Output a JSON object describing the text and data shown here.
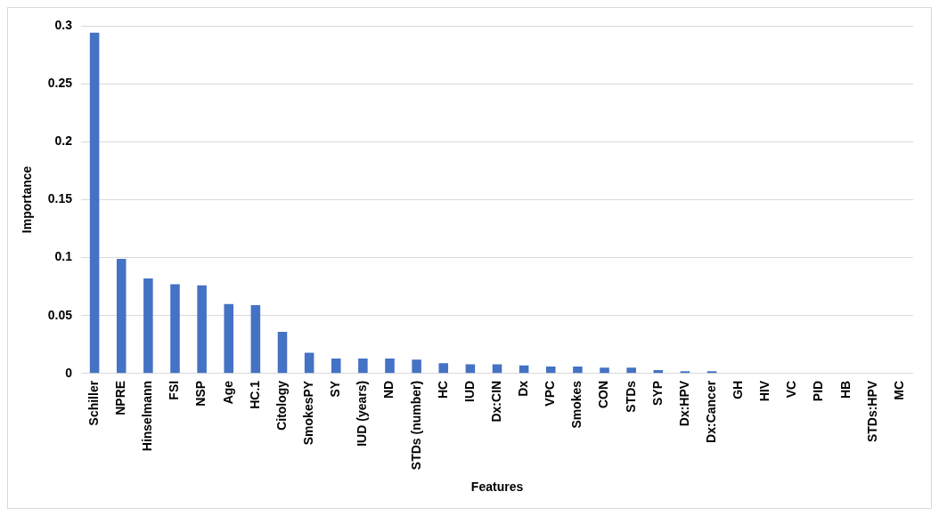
{
  "chart_data": {
    "type": "bar",
    "xlabel": "Features",
    "ylabel": "Importance",
    "categories": [
      "Schiller",
      "NPRE",
      "Hinselmann",
      "FSI",
      "NSP",
      "Age",
      "HC.1",
      "Citology",
      "SmokesPY",
      "SY",
      "IUD (years)",
      "ND",
      "STDs (number)",
      "HC",
      "IUD",
      "Dx:CIN",
      "Dx",
      "VPC",
      "Smokes",
      "CON",
      "STDs",
      "SYP",
      "Dx:HPV",
      "Dx:Cancer",
      "GH",
      "HIV",
      "VC",
      "PID",
      "HB",
      "STDs:HPV",
      "MC"
    ],
    "values": [
      0.294,
      0.099,
      0.082,
      0.077,
      0.076,
      0.06,
      0.059,
      0.036,
      0.018,
      0.013,
      0.013,
      0.013,
      0.012,
      0.009,
      0.008,
      0.008,
      0.007,
      0.006,
      0.006,
      0.005,
      0.005,
      0.003,
      0.002,
      0.002,
      0,
      0,
      0,
      0,
      0,
      0,
      0
    ],
    "color": "#4472c4",
    "ylim": [
      0,
      0.3
    ],
    "yticks": [
      0,
      0.05,
      0.1,
      0.15,
      0.2,
      0.25,
      0.3
    ],
    "grid": "y",
    "legend": false
  }
}
